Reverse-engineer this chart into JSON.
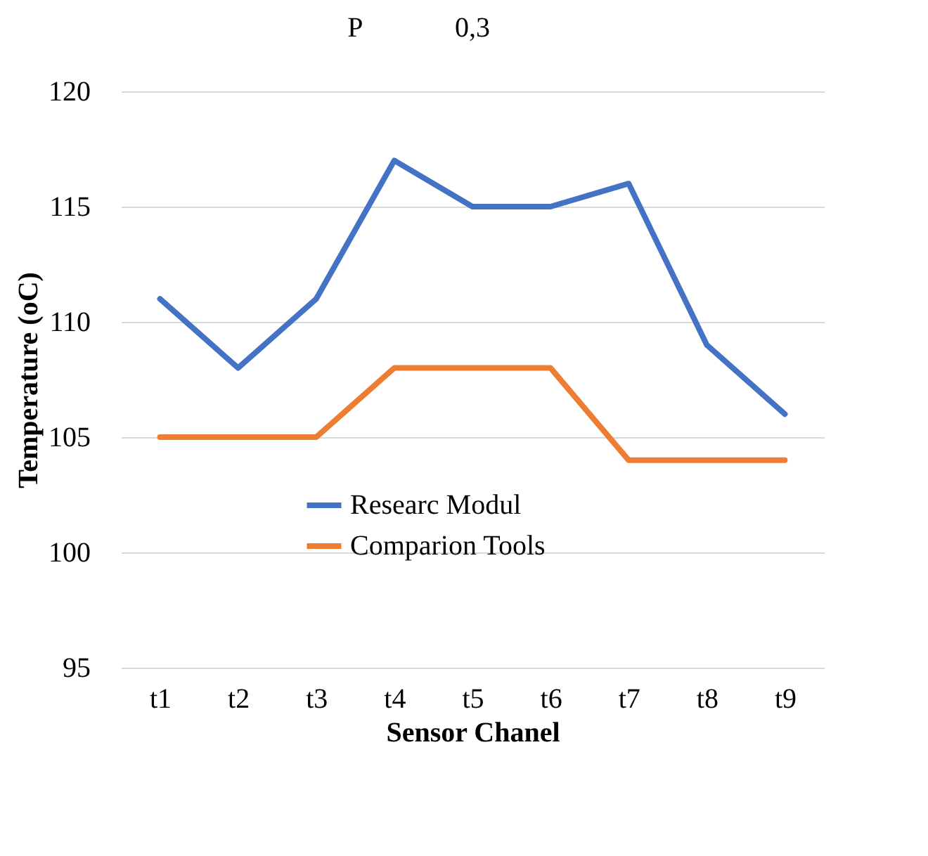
{
  "chart_data": {
    "type": "line",
    "annotations": [
      "P",
      "0,3"
    ],
    "xlabel": "Sensor Chanel",
    "ylabel": "Temperature (oC)",
    "categories": [
      "t1",
      "t2",
      "t3",
      "t4",
      "t5",
      "t6",
      "t7",
      "t8",
      "t9"
    ],
    "series": [
      {
        "name": "Researc Modul",
        "color": "#4472c4",
        "values": [
          111,
          108,
          111,
          117,
          115,
          115,
          116,
          109,
          106
        ]
      },
      {
        "name": "Comparion Tools",
        "color": "#ed7d31",
        "values": [
          105,
          105,
          105,
          108,
          108,
          108,
          104,
          104,
          104
        ]
      }
    ],
    "ylim": [
      95,
      120
    ],
    "yticks": [
      95,
      100,
      105,
      110,
      115,
      120
    ],
    "grid": "y",
    "legend": "bottom",
    "marker": "none",
    "line_style": "solid"
  }
}
